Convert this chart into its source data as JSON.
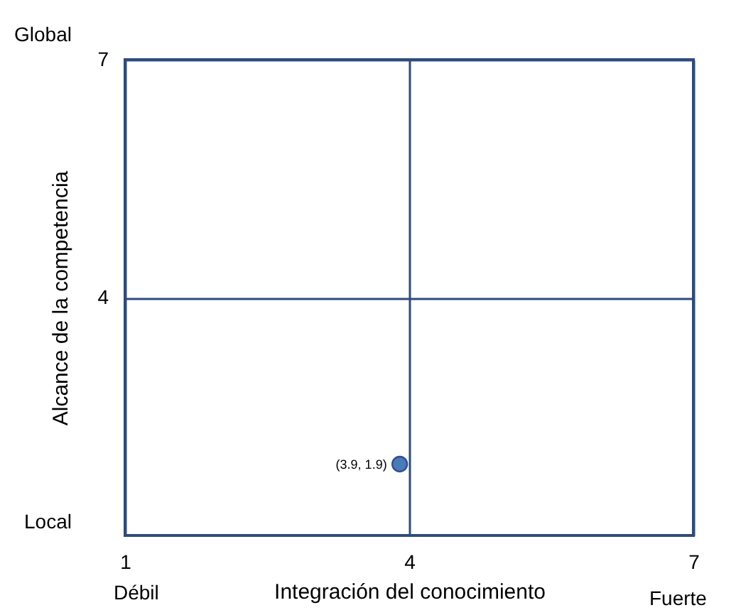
{
  "chart_data": {
    "type": "scatter",
    "xlabel": "Integración del conocimiento",
    "ylabel": "Alcance de la competencia",
    "x": [
      3.9
    ],
    "values": [
      1.9
    ],
    "color": "#4a7ab8",
    "marker": "circle",
    "value_labels": [
      "(3.9, 1.9)"
    ],
    "xlim": [
      1,
      7
    ],
    "ylim": [
      1,
      7
    ],
    "xticks": [
      1,
      4,
      7
    ],
    "yticks": [
      4,
      7
    ],
    "grid": true,
    "annotations": [
      "Global",
      "Local",
      "Débil",
      "Fuerte"
    ]
  }
}
